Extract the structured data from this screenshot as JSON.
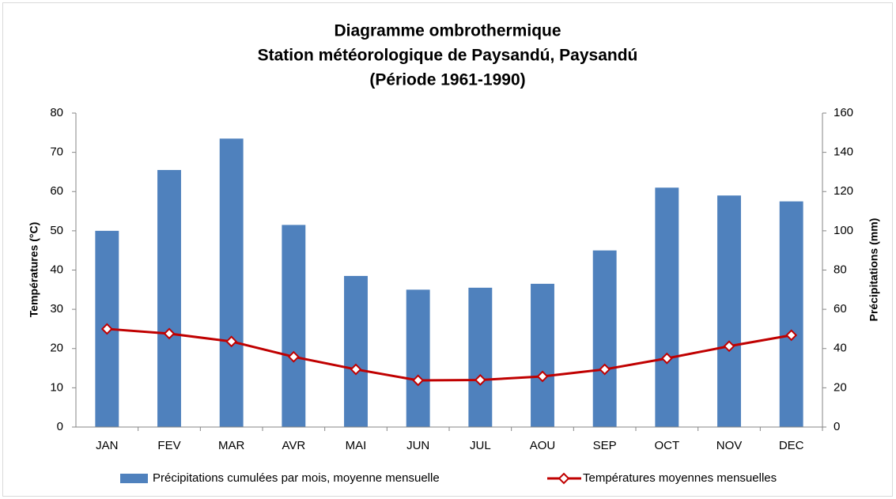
{
  "chart_data": {
    "type": "combo",
    "title": [
      "Diagramme ombrothermique",
      "Station météorologique de Paysandú, Paysandú",
      "(Période 1961-1990)"
    ],
    "y_label": "Températures (°C)",
    "y2_label": "Précipitations (mm)",
    "categories": [
      "JAN",
      "FEV",
      "MAR",
      "AVR",
      "MAI",
      "JUN",
      "JUL",
      "AOU",
      "SEP",
      "OCT",
      "NOV",
      "DEC"
    ],
    "series": [
      {
        "name": "Précipitations cumulées par mois, moyenne mensuelle",
        "type": "bar",
        "axis": "y2",
        "color": "#4f81bd",
        "values": [
          100,
          131,
          147,
          103,
          77,
          70,
          71,
          73,
          90,
          122,
          118,
          115
        ]
      },
      {
        "name": "Températures moyennes mensuelles",
        "type": "line",
        "axis": "y",
        "color": "#c00000",
        "values": [
          25.0,
          23.8,
          21.8,
          17.9,
          14.7,
          11.9,
          12.0,
          12.9,
          14.7,
          17.5,
          20.6,
          23.4
        ]
      }
    ],
    "ylim": [
      0,
      80
    ],
    "yticks": [
      0,
      10,
      20,
      30,
      40,
      50,
      60,
      70,
      80
    ],
    "y2lim": [
      0,
      160
    ],
    "y2ticks": [
      0,
      20,
      40,
      60,
      80,
      100,
      120,
      140,
      160
    ],
    "grid": false,
    "legend": "bottom"
  }
}
